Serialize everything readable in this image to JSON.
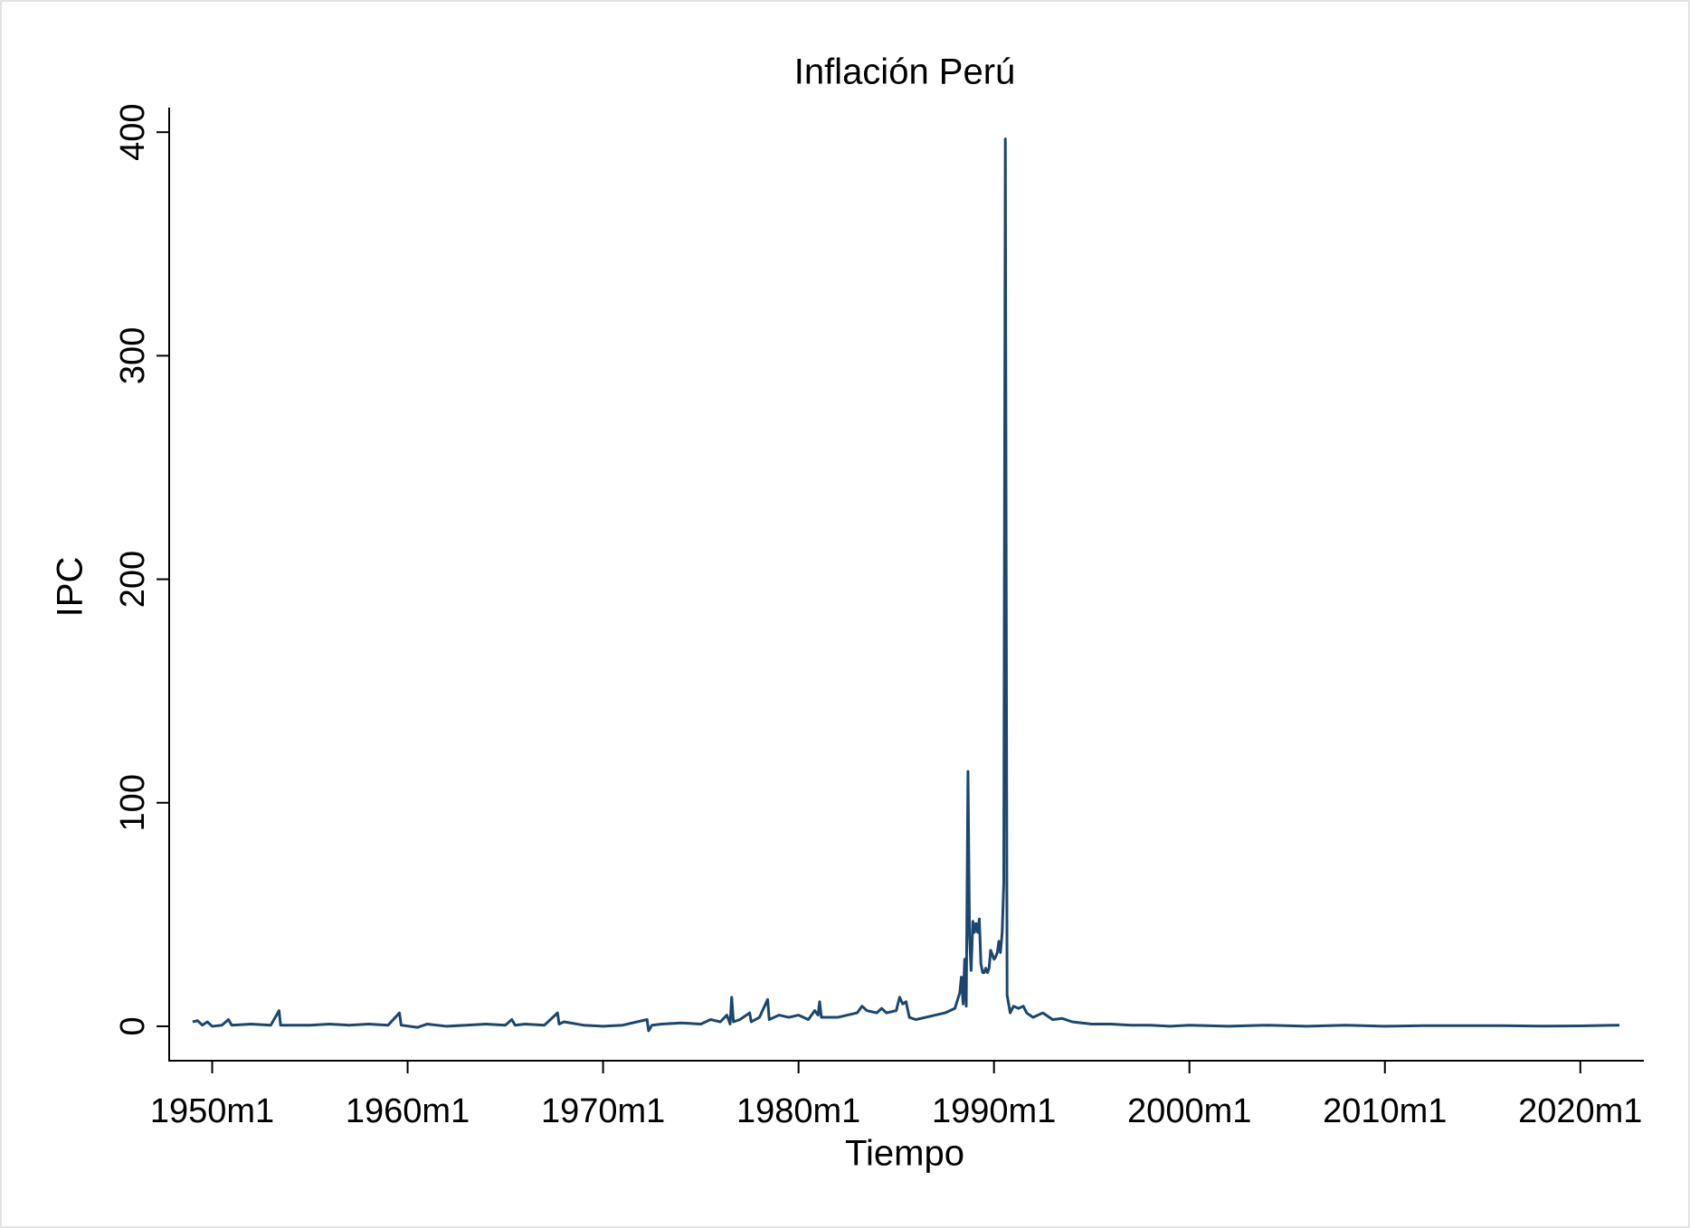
{
  "chart_data": {
    "type": "line",
    "title": "Inflación Perú",
    "x_label": "Tiempo",
    "y_label": "IPC",
    "color": "#1a476f",
    "title_color": "#1a2f57",
    "xlim": [
      1947.8,
      2023.25
    ],
    "ylim": [
      -15.4,
      411
    ],
    "xticks": [
      {
        "value": 1950,
        "label": "1950m1"
      },
      {
        "value": 1960,
        "label": "1960m1"
      },
      {
        "value": 1970,
        "label": "1970m1"
      },
      {
        "value": 1980,
        "label": "1980m1"
      },
      {
        "value": 1990,
        "label": "1990m1"
      },
      {
        "value": 2000,
        "label": "2000m1"
      },
      {
        "value": 2010,
        "label": "2010m1"
      },
      {
        "value": 2020,
        "label": "2020m1"
      }
    ],
    "yticks": [
      0,
      100,
      200,
      300,
      400
    ],
    "x": [
      1949.0,
      1949.25,
      1949.5,
      1949.75,
      1950.0,
      1950.5,
      1950.83,
      1951.0,
      1952.0,
      1953.0,
      1953.42,
      1953.5,
      1954.0,
      1955.0,
      1956.0,
      1957.0,
      1958.0,
      1959.0,
      1959.58,
      1959.67,
      1960.5,
      1961.0,
      1962.0,
      1963.0,
      1964.0,
      1965.0,
      1965.33,
      1965.5,
      1966.0,
      1967.0,
      1967.67,
      1967.75,
      1968.0,
      1969.0,
      1970.0,
      1971.0,
      1972.25,
      1972.33,
      1972.5,
      1973.0,
      1974.0,
      1975.0,
      1975.5,
      1976.0,
      1976.33,
      1976.5,
      1976.58,
      1976.67,
      1977.0,
      1977.5,
      1977.58,
      1978.0,
      1978.42,
      1978.5,
      1979.0,
      1979.5,
      1980.0,
      1980.5,
      1980.83,
      1981.0,
      1981.08,
      1981.17,
      1982.0,
      1982.5,
      1983.0,
      1983.25,
      1983.5,
      1984.0,
      1984.25,
      1984.5,
      1985.0,
      1985.17,
      1985.33,
      1985.5,
      1985.67,
      1986.0,
      1986.5,
      1987.0,
      1987.5,
      1988.0,
      1988.25,
      1988.33,
      1988.42,
      1988.5,
      1988.58,
      1988.67,
      1988.75,
      1988.83,
      1988.92,
      1989.0,
      1989.08,
      1989.17,
      1989.25,
      1989.33,
      1989.42,
      1989.5,
      1989.58,
      1989.67,
      1989.75,
      1989.83,
      1989.92,
      1990.0,
      1990.08,
      1990.17,
      1990.25,
      1990.33,
      1990.42,
      1990.5,
      1990.58,
      1990.67,
      1990.75,
      1990.83,
      1991.0,
      1991.25,
      1991.5,
      1991.67,
      1992.0,
      1992.5,
      1993.0,
      1993.5,
      1994.0,
      1995.0,
      1996.0,
      1997.0,
      1998.0,
      1999.0,
      2000.0,
      2002.0,
      2004.0,
      2006.0,
      2008.0,
      2010.0,
      2012.0,
      2014.0,
      2016.0,
      2018.0,
      2020.0,
      2022.0
    ],
    "values": [
      2,
      2.5,
      0.5,
      2,
      0,
      0.5,
      3,
      0.5,
      1,
      0.5,
      7,
      0.5,
      0.5,
      0.5,
      1,
      0.5,
      1,
      0.5,
      6,
      0.5,
      -0.5,
      1,
      0,
      0.5,
      1,
      0.5,
      3,
      0.5,
      1,
      0.5,
      6,
      1,
      2,
      0.5,
      0,
      0.5,
      3,
      -2,
      0.5,
      1,
      1.5,
      1,
      3,
      2,
      5,
      1,
      13,
      2,
      3,
      6,
      2,
      4,
      12,
      3,
      5,
      4,
      5,
      3,
      7,
      5,
      11,
      4,
      4,
      5,
      6,
      9,
      7,
      6,
      8,
      6,
      7,
      13,
      10,
      11,
      4,
      3,
      4,
      5,
      6,
      8,
      15,
      22,
      10,
      30,
      9,
      114,
      40,
      25,
      47,
      42,
      46,
      42,
      48,
      28,
      24,
      24,
      26,
      24,
      26,
      34,
      32,
      30,
      31,
      33,
      38,
      33,
      42,
      64,
      397,
      14,
      10,
      6,
      9,
      8,
      9,
      6,
      4,
      6,
      3,
      3.5,
      2,
      1,
      1,
      0.5,
      0.5,
      0,
      0.5,
      0,
      0.5,
      0,
      0.5,
      0,
      0.3,
      0.3,
      0.3,
      0.1,
      0.2,
      0.5
    ]
  }
}
